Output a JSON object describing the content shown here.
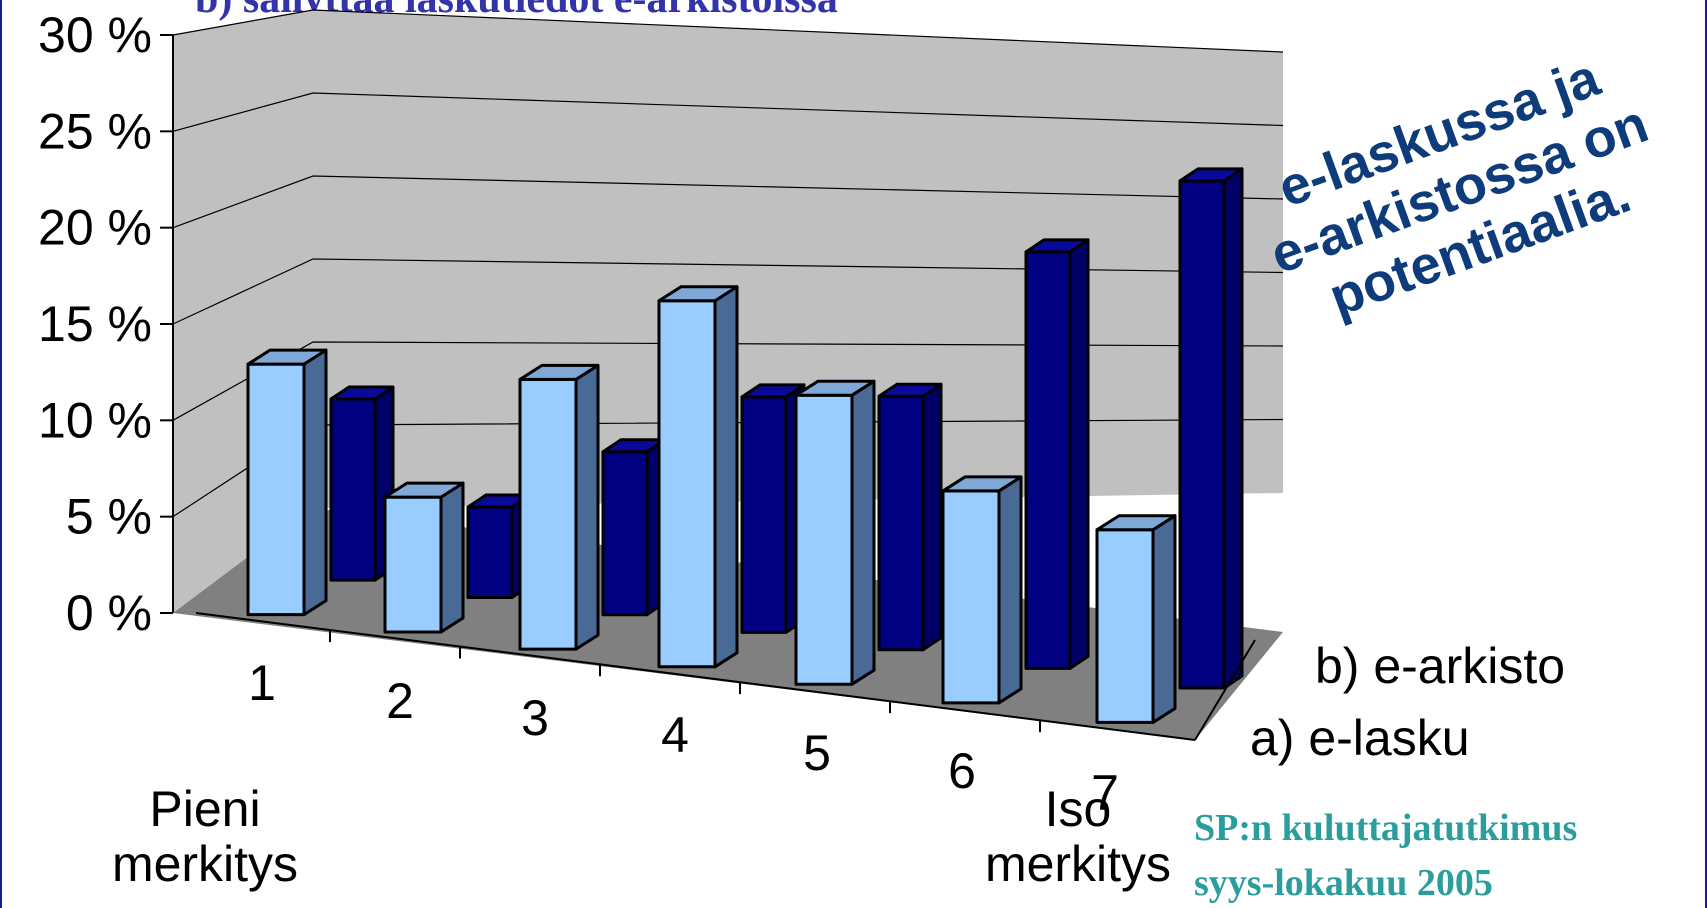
{
  "chart_data": {
    "type": "bar",
    "title": "b) säilyttää laskutiedot e-arkistoissa",
    "categories": [
      "1",
      "2",
      "3",
      "4",
      "5",
      "6",
      "7"
    ],
    "series": [
      {
        "name": "a) e-lasku",
        "values": [
          13,
          7,
          14,
          19,
          15,
          11,
          10
        ]
      },
      {
        "name": "b) e-arkisto",
        "values": [
          10,
          5,
          9,
          13,
          14,
          23,
          28
        ]
      }
    ],
    "yticks": [
      "0 %",
      "5 %",
      "10 %",
      "15 %",
      "20 %",
      "25 %",
      "30 %"
    ],
    "ylim": [
      0,
      30
    ],
    "grid": true,
    "axis_end_labels": {
      "low": "Pieni merkitys",
      "high": "Iso merkitys"
    },
    "annotation": [
      "e-laskussa ja",
      "e-arkistossa on",
      "potentiaalia."
    ],
    "source": [
      "SP:n kuluttajatutkimus",
      "syys-lokakuu 2005"
    ],
    "colors": {
      "e_lasku_face": "#99ccff",
      "e_lasku_side": "#4a6a96",
      "e_arkisto_face": "#000080",
      "e_arkisto_side": "#000066",
      "wall": "#c0c0c0",
      "floor": "#808080",
      "title": "#3333aa",
      "annotation": "#0e3b7a",
      "source": "#2a9d9d"
    }
  }
}
